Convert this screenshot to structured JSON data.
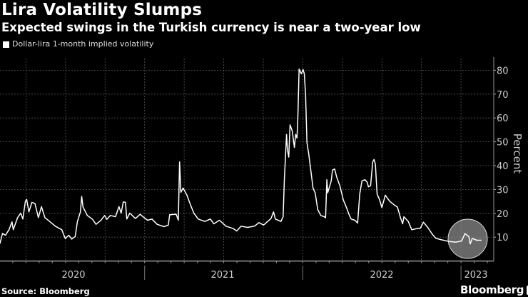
{
  "header": {
    "title": "Lira Volatility Slumps",
    "subtitle": "Expected swings in the Turkish currency is near a two-year low"
  },
  "footer": {
    "source": "Source: Bloomberg",
    "brand": "Bloomberg"
  },
  "colors": {
    "background": "#000000",
    "line": "#ffffff",
    "highlight": "#8a8a8a",
    "grid": "#555555"
  },
  "chart_data": {
    "type": "line",
    "title": "Lira Volatility Slumps",
    "subtitle": "Expected swings in the Turkish currency is near a two-year low",
    "ylabel": "Percent",
    "xlabel": "",
    "ylim": [
      0,
      86
    ],
    "yticks": [
      10,
      20,
      30,
      40,
      50,
      60,
      70,
      80
    ],
    "xtick_labels": [
      "2020",
      "2021",
      "2022",
      "2023"
    ],
    "grid": true,
    "y_axis_side": "right",
    "legend_position": "top-left",
    "annotation": "circle highlighting Jan-Feb 2023 values",
    "series": [
      {
        "name": "Dollar-lira 1-month implied volatility",
        "points": [
          [
            "2020-02-01",
            7.2
          ],
          [
            "2020-02-07",
            11.6
          ],
          [
            "2020-02-14",
            10.8
          ],
          [
            "2020-02-22",
            13.1
          ],
          [
            "2020-02-29",
            16.4
          ],
          [
            "2020-03-03",
            13.1
          ],
          [
            "2020-03-13",
            18.2
          ],
          [
            "2020-03-20",
            20.1
          ],
          [
            "2020-03-25",
            17.6
          ],
          [
            "2020-03-31",
            25.1
          ],
          [
            "2020-04-03",
            25.8
          ],
          [
            "2020-04-08",
            20.6
          ],
          [
            "2020-04-15",
            24.6
          ],
          [
            "2020-04-22",
            24.1
          ],
          [
            "2020-04-30",
            18.2
          ],
          [
            "2020-05-07",
            22.8
          ],
          [
            "2020-05-15",
            18.2
          ],
          [
            "2020-05-26",
            16.6
          ],
          [
            "2020-06-08",
            14.6
          ],
          [
            "2020-06-23",
            13.1
          ],
          [
            "2020-07-01",
            9.4
          ],
          [
            "2020-07-09",
            10.8
          ],
          [
            "2020-07-16",
            9.2
          ],
          [
            "2020-07-24",
            10.3
          ],
          [
            "2020-07-29",
            16.6
          ],
          [
            "2020-08-05",
            20.6
          ],
          [
            "2020-08-08",
            27.1
          ],
          [
            "2020-08-11",
            22.6
          ],
          [
            "2020-08-21",
            19.1
          ],
          [
            "2020-09-02",
            17.5
          ],
          [
            "2020-09-10",
            15.4
          ],
          [
            "2020-09-21",
            17.0
          ],
          [
            "2020-09-30",
            19.1
          ],
          [
            "2020-10-05",
            17.5
          ],
          [
            "2020-10-13",
            19.1
          ],
          [
            "2020-10-25",
            18.6
          ],
          [
            "2020-11-02",
            22.8
          ],
          [
            "2020-11-07",
            20.1
          ],
          [
            "2020-11-12",
            24.8
          ],
          [
            "2020-11-17",
            24.6
          ],
          [
            "2020-11-20",
            17.6
          ],
          [
            "2020-11-27",
            20.1
          ],
          [
            "2020-12-10",
            17.8
          ],
          [
            "2020-12-21",
            19.6
          ],
          [
            "2020-12-26",
            18.8
          ],
          [
            "2021-01-07",
            17.1
          ],
          [
            "2021-01-17",
            17.6
          ],
          [
            "2021-01-29",
            15.4
          ],
          [
            "2021-02-14",
            14.4
          ],
          [
            "2021-02-24",
            15.1
          ],
          [
            "2021-02-27",
            19.4
          ],
          [
            "2021-03-14",
            19.6
          ],
          [
            "2021-03-19",
            17.1
          ],
          [
            "2021-03-22",
            41.6
          ],
          [
            "2021-03-25",
            28.8
          ],
          [
            "2021-03-30",
            30.6
          ],
          [
            "2021-04-08",
            27.6
          ],
          [
            "2021-04-16",
            23.6
          ],
          [
            "2021-04-24",
            20.1
          ],
          [
            "2021-05-04",
            17.6
          ],
          [
            "2021-05-19",
            16.6
          ],
          [
            "2021-06-01",
            17.6
          ],
          [
            "2021-06-09",
            15.6
          ],
          [
            "2021-06-22",
            17.1
          ],
          [
            "2021-07-07",
            14.6
          ],
          [
            "2021-07-24",
            13.6
          ],
          [
            "2021-08-01",
            12.6
          ],
          [
            "2021-08-11",
            14.6
          ],
          [
            "2021-08-26",
            14.1
          ],
          [
            "2021-09-11",
            14.6
          ],
          [
            "2021-09-21",
            16.1
          ],
          [
            "2021-10-02",
            15.1
          ],
          [
            "2021-10-19",
            17.8
          ],
          [
            "2021-10-25",
            20.6
          ],
          [
            "2021-10-29",
            17.6
          ],
          [
            "2021-11-11",
            16.6
          ],
          [
            "2021-11-16",
            18.6
          ],
          [
            "2021-11-19",
            34.6
          ],
          [
            "2021-11-24",
            53.1
          ],
          [
            "2021-11-26",
            46.6
          ],
          [
            "2021-11-29",
            43.6
          ],
          [
            "2021-12-02",
            57.1
          ],
          [
            "2021-12-07",
            54.6
          ],
          [
            "2021-12-12",
            47.6
          ],
          [
            "2021-12-15",
            53.1
          ],
          [
            "2021-12-18",
            51.6
          ],
          [
            "2021-12-20",
            59.6
          ],
          [
            "2021-12-23",
            80.5
          ],
          [
            "2021-12-28",
            78.5
          ],
          [
            "2022-01-01",
            80.3
          ],
          [
            "2022-01-04",
            78.5
          ],
          [
            "2022-01-07",
            69.5
          ],
          [
            "2022-01-10",
            49.6
          ],
          [
            "2022-01-14",
            45.1
          ],
          [
            "2022-01-20",
            36.6
          ],
          [
            "2022-01-24",
            30.6
          ],
          [
            "2022-01-29",
            28.6
          ],
          [
            "2022-02-04",
            21.6
          ],
          [
            "2022-02-11",
            19.1
          ],
          [
            "2022-02-19",
            18.6
          ],
          [
            "2022-02-22",
            18.1
          ],
          [
            "2022-02-25",
            34.1
          ],
          [
            "2022-02-27",
            28.6
          ],
          [
            "2022-03-07",
            33.6
          ],
          [
            "2022-03-10",
            38.1
          ],
          [
            "2022-03-15",
            38.6
          ],
          [
            "2022-03-20",
            35.1
          ],
          [
            "2022-03-27",
            31.6
          ],
          [
            "2022-04-04",
            25.6
          ],
          [
            "2022-04-12",
            22.1
          ],
          [
            "2022-04-17",
            19.6
          ],
          [
            "2022-04-22",
            17.6
          ],
          [
            "2022-05-01",
            17.1
          ],
          [
            "2022-05-07",
            15.9
          ],
          [
            "2022-05-12",
            28.1
          ],
          [
            "2022-05-17",
            33.6
          ],
          [
            "2022-05-24",
            34.1
          ],
          [
            "2022-05-29",
            33.1
          ],
          [
            "2022-06-01",
            31.1
          ],
          [
            "2022-06-06",
            31.6
          ],
          [
            "2022-06-11",
            41.6
          ],
          [
            "2022-06-14",
            42.6
          ],
          [
            "2022-06-17",
            40.6
          ],
          [
            "2022-06-21",
            28.1
          ],
          [
            "2022-06-27",
            25.6
          ],
          [
            "2022-07-02",
            22.4
          ],
          [
            "2022-07-10",
            27.6
          ],
          [
            "2022-07-20",
            25.1
          ],
          [
            "2022-07-30",
            23.6
          ],
          [
            "2022-08-07",
            22.6
          ],
          [
            "2022-08-14",
            18.1
          ],
          [
            "2022-08-19",
            15.6
          ],
          [
            "2022-08-22",
            18.6
          ],
          [
            "2022-09-01",
            16.6
          ],
          [
            "2022-09-09",
            13.1
          ],
          [
            "2022-09-21",
            13.6
          ],
          [
            "2022-09-29",
            13.8
          ],
          [
            "2022-10-06",
            16.3
          ],
          [
            "2022-10-16",
            14.1
          ],
          [
            "2022-10-27",
            11.1
          ],
          [
            "2022-11-04",
            9.5
          ],
          [
            "2022-11-17",
            8.9
          ],
          [
            "2022-12-04",
            8.2
          ],
          [
            "2022-12-20",
            7.9
          ],
          [
            "2023-01-02",
            8.4
          ],
          [
            "2023-01-10",
            11.5
          ],
          [
            "2023-01-19",
            10.2
          ],
          [
            "2023-01-22",
            7.2
          ],
          [
            "2023-01-27",
            9.5
          ],
          [
            "2023-02-06",
            8.7
          ],
          [
            "2023-02-17",
            8.7
          ]
        ]
      }
    ]
  }
}
